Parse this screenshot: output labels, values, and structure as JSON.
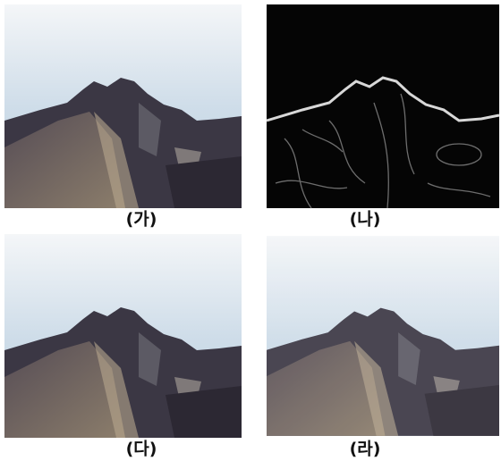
{
  "captions": [
    "(가)",
    "(나)",
    "(다)",
    "(라)"
  ]
}
